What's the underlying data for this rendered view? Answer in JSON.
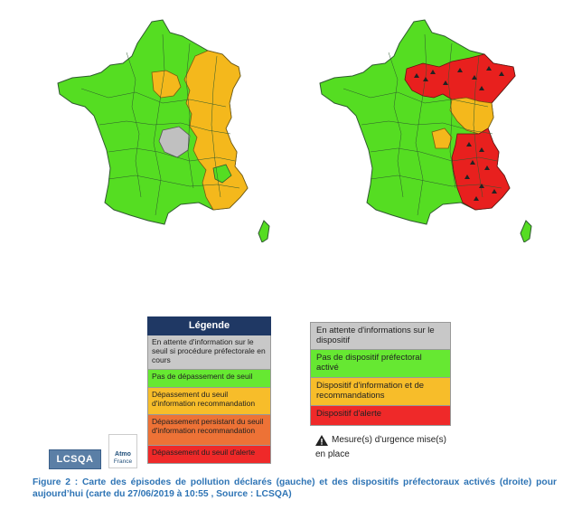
{
  "legend_left": {
    "title": "Légende",
    "items": [
      {
        "label": "En attente d'information sur le seuil si procédure préfectorale en cours",
        "color": "#c8c8c8"
      },
      {
        "label": "Pas de dépassement de seuil",
        "color": "#66e832"
      },
      {
        "label": "Dépassement du seuil d'information recommandation",
        "color": "#f7bd2a"
      },
      {
        "label": "Dépassement persistant du seuil d'information recommandation",
        "color": "#ed7236"
      },
      {
        "label": "Dépassement du seuil d'alerte",
        "color": "#ef2929"
      }
    ]
  },
  "legend_right": {
    "items": [
      {
        "label": "En attente d'informations sur le dispositif",
        "color": "#c8c8c8"
      },
      {
        "label": "Pas de dispositif préfectoral activé",
        "color": "#66e832"
      },
      {
        "label": "Dispositif d'information et de recommandations",
        "color": "#f7bd2a"
      },
      {
        "label": "Dispositif d'alerte",
        "color": "#ef2929"
      }
    ],
    "urgence_label": "Mesure(s) d'urgence mise(s) en place"
  },
  "logos": {
    "lcsqa": "LCSQA",
    "atmo": "Atmo",
    "atmo_sub": "France"
  },
  "caption": "Figure 2 : Carte des épisodes de pollution déclarés (gauche) et des dispositifs préfectoraux activés (droite) pour aujourd’hui (carte du 27/06/2019 à 10:55 , Source : LCSQA)",
  "colors": {
    "green": "#55dd22",
    "orange": "#f4b81c",
    "grey": "#c0c0c0",
    "red": "#e8201e",
    "border": "#3a5a3a"
  }
}
